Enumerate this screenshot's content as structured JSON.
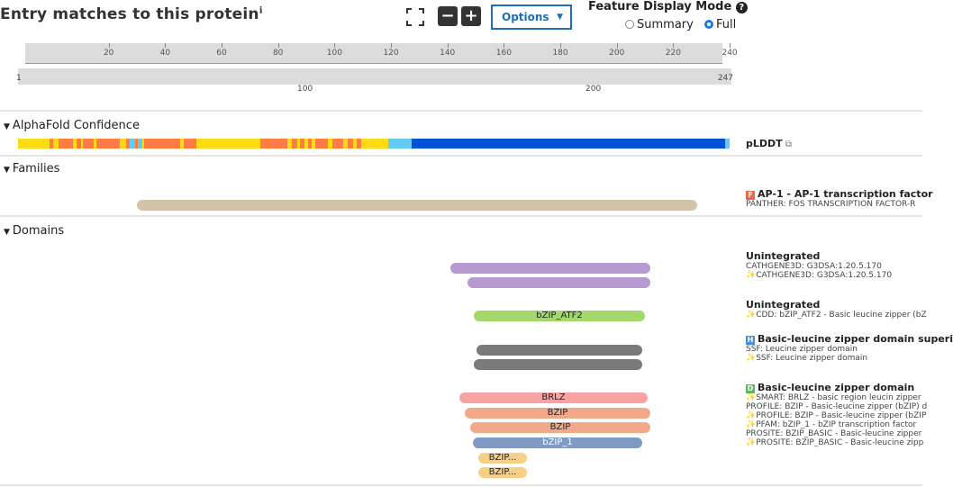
{
  "header": {
    "title": "Entry matches to this protein",
    "info_glyph": "ℹ",
    "options_label": "Options",
    "feature_display_mode_label": "Feature Display Mode",
    "help_glyph": "?",
    "mode_summary": "Summary",
    "mode_full": "Full",
    "selected_mode": "Full"
  },
  "ruler": {
    "ticks": [
      "20",
      "40",
      "60",
      "80",
      "100",
      "120",
      "140",
      "160",
      "180",
      "200",
      "220",
      "240"
    ],
    "start": "1",
    "end": "247",
    "mid_100": "100",
    "mid_200": "200"
  },
  "tracks": {
    "alphafold": {
      "title": "AlphaFold Confidence",
      "legend": "pLDDT",
      "legend_icon": "external-link-icon"
    },
    "families": {
      "title": "Families"
    },
    "domains": {
      "title": "Domains"
    }
  },
  "colors": {
    "very_high": "#0053d6",
    "confident": "#65cbf3",
    "low": "#ffdb13",
    "very_low": "#ff7d45",
    "family_bar": "#d3c3a7",
    "purple": "#b79ad1",
    "green": "#a3d86a",
    "gray": "#7a7a7a",
    "pink": "#f7a3a3",
    "salmon": "#f2a98a",
    "steel": "#7f9ac4",
    "yellow": "#f7d087"
  },
  "labels": {
    "family": {
      "badge": "F",
      "head": "AP-1 - AP-1 transcription factor",
      "sub": "PANTHER: FOS TRANSCRIPTION FACTOR-R"
    },
    "unint1": {
      "head": "Unintegrated",
      "lines": [
        "CATHGENE3D: G3DSA:1.20.5.170",
        "✨CATHGENE3D: G3DSA:1.20.5.170"
      ]
    },
    "unint2": {
      "head": "Unintegrated",
      "lines": [
        "✨CDD: bZIP_ATF2 - Basic leucine zipper (bZ"
      ]
    },
    "homsuper": {
      "badge": "H",
      "head": "Basic-leucine zipper domain superi",
      "lines": [
        "SSF: Leucine zipper domain",
        "✨SSF: Leucine zipper domain"
      ]
    },
    "domain": {
      "badge": "D",
      "head": "Basic-leucine zipper domain",
      "lines": [
        "✨SMART: BRLZ - basic region leucin zipper",
        "PROFILE: BZIP - Basic-leucine zipper (bZIP) d",
        "✨PROFILE: BZIP - Basic-leucine zipper (bZIP",
        "✨PFAM: bZIP_1 - bZIP transcription factor",
        "PROSITE: BZIP_BASIC - Basic-leucine zipper",
        "✨PROSITE: BZIP_BASIC - Basic-leucine zipp"
      ]
    }
  },
  "domain_bars": {
    "bzip_atf2": "bZIP_ATF2",
    "brlz": "BRLZ",
    "bzip1": "BZIP",
    "bzip2": "BZIP",
    "bzip_1": "bZIP_1",
    "bzip_basic1": "BZIP...",
    "bzip_basic2": "BZIP..."
  }
}
